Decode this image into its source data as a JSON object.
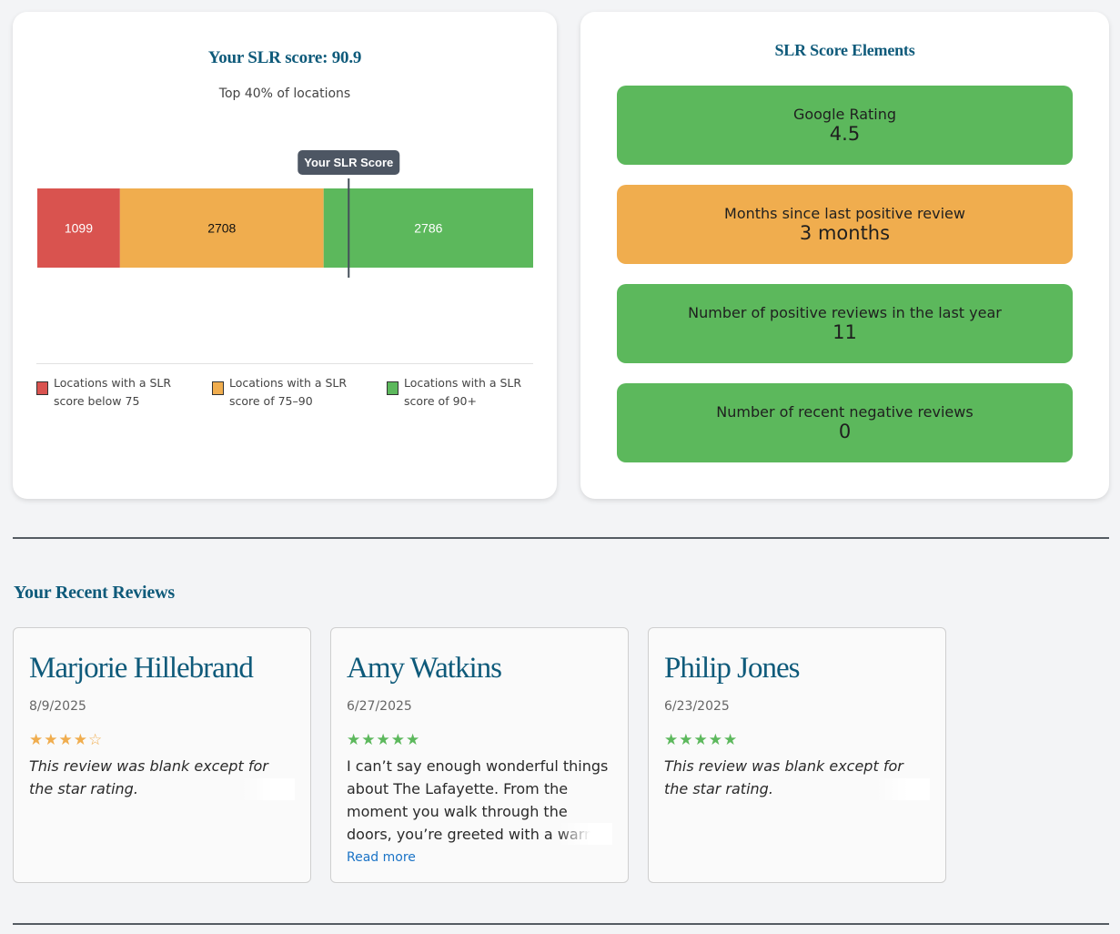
{
  "score_card": {
    "title": "Your SLR score: 90.9",
    "subtitle": "Top 40% of locations",
    "marker_label": "Your SLR Score",
    "legend": [
      {
        "label": "Locations with a SLR score below 75",
        "color": "#d9534f"
      },
      {
        "label": "Locations with a SLR score of 75–90",
        "color": "#f0ad4e"
      },
      {
        "label": "Locations with a SLR score of 90+",
        "color": "#5cb85c"
      }
    ]
  },
  "chart_data": {
    "type": "bar",
    "orientation": "horizontal-stacked",
    "series": [
      {
        "name": "Locations with a SLR score below 75",
        "value": 1099,
        "color": "#d9534f"
      },
      {
        "name": "Locations with a SLR score of 75–90",
        "value": 2708,
        "color": "#f0ad4e"
      },
      {
        "name": "Locations with a SLR score of 90+",
        "value": 2786,
        "color": "#5cb85c"
      }
    ],
    "marker": {
      "label": "Your SLR Score",
      "percentile_position": 0.628
    },
    "legend_position": "bottom"
  },
  "elements_card": {
    "title": "SLR Score Elements",
    "items": [
      {
        "label": "Google Rating",
        "value": "4.5",
        "color": "#5cb85c"
      },
      {
        "label": "Months since last positive review",
        "value": "3 months",
        "color": "#f0ad4e"
      },
      {
        "label": "Number of positive reviews in the last year",
        "value": "11",
        "color": "#5cb85c"
      },
      {
        "label": "Number of recent negative reviews",
        "value": "0",
        "color": "#5cb85c"
      }
    ]
  },
  "reviews": {
    "title": "Your Recent Reviews",
    "read_more_label": "Read more",
    "items": [
      {
        "name": "Marjorie Hillebrand",
        "date": "8/9/2025",
        "rating": 4,
        "star_color": "#f0ad4e",
        "text": "This review was blank except for the star rating.",
        "italic": true,
        "truncated": false
      },
      {
        "name": "Amy Watkins",
        "date": "6/27/2025",
        "rating": 5,
        "star_color": "#5cb85c",
        "text": "I can’t say enough wonderful things about The Lafayette. From the moment you walk through the doors, you’re greeted with a warm, welcoming…",
        "italic": false,
        "truncated": true
      },
      {
        "name": "Philip Jones",
        "date": "6/23/2025",
        "rating": 5,
        "star_color": "#5cb85c",
        "text": "This review was blank except for the star rating.",
        "italic": true,
        "truncated": false
      }
    ]
  }
}
